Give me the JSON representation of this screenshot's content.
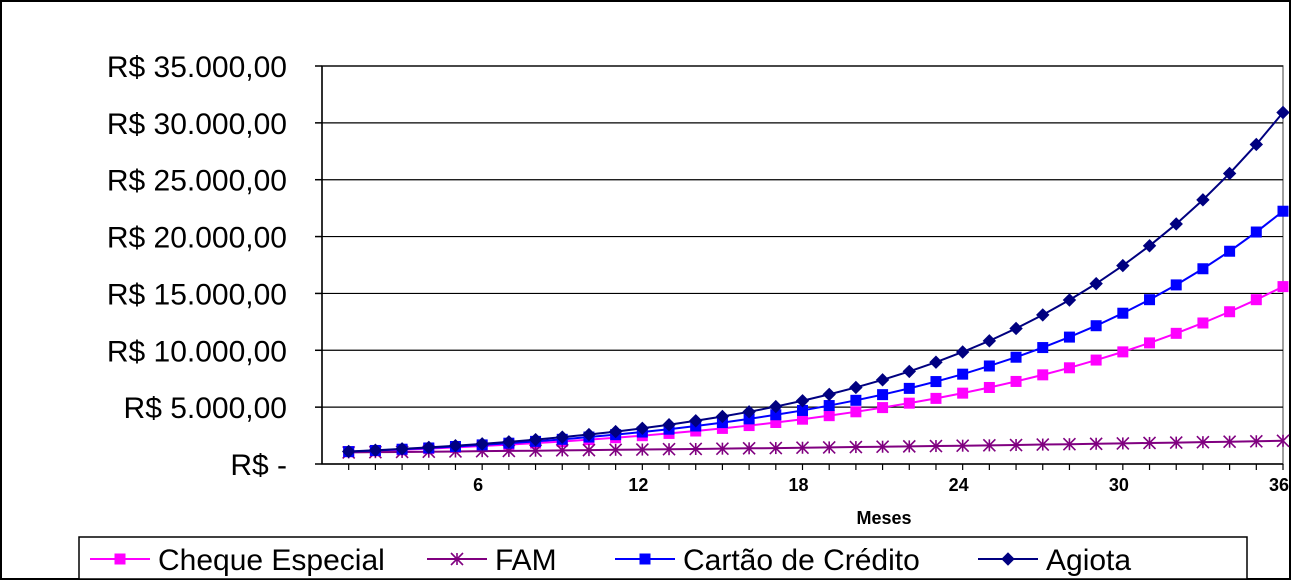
{
  "chart_data": {
    "type": "line",
    "title": "",
    "xlabel": "Meses",
    "ylabel": "",
    "x": [
      1,
      2,
      3,
      4,
      5,
      6,
      7,
      8,
      9,
      10,
      11,
      12,
      13,
      14,
      15,
      16,
      17,
      18,
      19,
      20,
      21,
      22,
      23,
      24,
      25,
      26,
      27,
      28,
      29,
      30,
      31,
      32,
      33,
      34,
      35,
      36
    ],
    "xlim": [
      0,
      36
    ],
    "xticks": [
      6,
      12,
      18,
      24,
      30,
      36
    ],
    "ylim": [
      0,
      35000
    ],
    "yticks": [
      0,
      5000,
      10000,
      15000,
      20000,
      25000,
      30000,
      35000
    ],
    "ytick_labels": [
      "R$ -",
      "R$ 5.000,00",
      "R$ 10.000,00",
      "R$ 15.000,00",
      "R$ 20.000,00",
      "R$ 25.000,00",
      "R$ 30.000,00",
      "R$ 35.000,00"
    ],
    "grid": "horizontal",
    "legend": "bottom",
    "series": [
      {
        "name": "Cheque Especial",
        "color": "#ff00ff",
        "marker": "square",
        "values": [
          1080,
          1160,
          1250,
          1350,
          1460,
          1580,
          1700,
          1840,
          1980,
          2140,
          2310,
          2490,
          2690,
          2900,
          3130,
          3380,
          3650,
          3940,
          4250,
          4590,
          4960,
          5350,
          5770,
          6230,
          6730,
          7260,
          7840,
          8460,
          9140,
          9860,
          10650,
          11490,
          12400,
          13390,
          14450,
          15600
        ]
      },
      {
        "name": "FAM",
        "color": "#800080",
        "marker": "asterisk",
        "values": [
          1020,
          1040,
          1060,
          1080,
          1100,
          1130,
          1150,
          1170,
          1200,
          1220,
          1250,
          1270,
          1300,
          1320,
          1350,
          1380,
          1400,
          1430,
          1460,
          1490,
          1520,
          1550,
          1580,
          1610,
          1640,
          1670,
          1710,
          1740,
          1780,
          1810,
          1850,
          1880,
          1920,
          1960,
          2000,
          2040
        ]
      },
      {
        "name": "Cartão de Crédito",
        "color": "#0000ff",
        "marker": "square",
        "values": [
          1090,
          1190,
          1300,
          1410,
          1540,
          1680,
          1830,
          1990,
          2170,
          2370,
          2580,
          2810,
          3060,
          3340,
          3640,
          3970,
          4330,
          4710,
          5140,
          5600,
          6100,
          6650,
          7250,
          7900,
          8620,
          9390,
          10240,
          11160,
          12160,
          13260,
          14450,
          15750,
          17170,
          18710,
          20400,
          22230
        ]
      },
      {
        "name": "Agiota",
        "color": "#000080",
        "marker": "diamond",
        "values": [
          1100,
          1210,
          1330,
          1460,
          1610,
          1770,
          1950,
          2140,
          2360,
          2590,
          2850,
          3140,
          3450,
          3800,
          4180,
          4590,
          5050,
          5560,
          6120,
          6730,
          7400,
          8140,
          8950,
          9850,
          10830,
          11920,
          13110,
          14420,
          15860,
          17450,
          19190,
          21110,
          23230,
          25550,
          28100,
          30910
        ]
      }
    ]
  }
}
